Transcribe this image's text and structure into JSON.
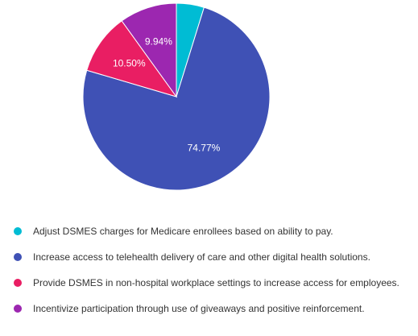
{
  "chart_data": {
    "type": "pie",
    "title": "",
    "slices": [
      {
        "label": "Adjust DSMES charges for Medicare enrollees based on ability to pay.",
        "value": 4.79,
        "color": "#00BCD4",
        "data_label": ""
      },
      {
        "label": "Increase access to telehealth delivery of care and other digital health solutions.",
        "value": 74.77,
        "color": "#3F51B5",
        "data_label": "74.77%"
      },
      {
        "label": "Provide DSMES in non-hospital workplace settings to increase access for employees.",
        "value": 10.5,
        "color": "#E91E63",
        "data_label": "10.50%"
      },
      {
        "label": "Incentivize participation through use of giveaways and positive reinforcement.",
        "value": 9.94,
        "color": "#9C27B0",
        "data_label": "9.94%"
      }
    ],
    "legend_position": "bottom"
  }
}
